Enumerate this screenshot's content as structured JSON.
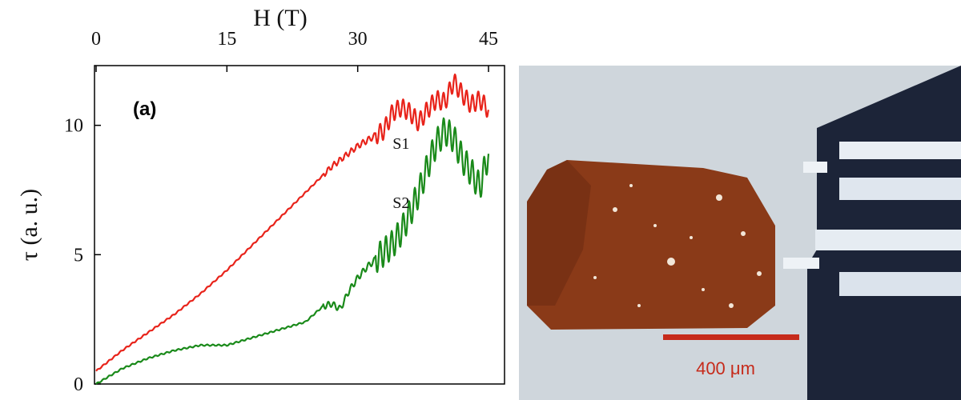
{
  "chart_data": {
    "type": "line",
    "panel_label": "(a)",
    "xlabel": "H (T)",
    "ylabel": "τ (a. u.)",
    "xlim": [
      0,
      45
    ],
    "ylim": [
      0,
      12
    ],
    "x_ticks": [
      0,
      15,
      30,
      45
    ],
    "y_ticks": [
      0,
      5,
      10
    ],
    "x_axis_position": "top",
    "grid": false,
    "series": [
      {
        "name": "S1",
        "color": "#e8231a",
        "x": [
          0,
          3,
          6,
          9,
          12,
          15,
          18,
          21,
          24,
          27,
          30,
          32,
          33,
          34,
          35,
          36,
          37,
          38,
          39,
          40,
          41,
          42,
          43,
          44,
          45
        ],
        "y": [
          0.5,
          1.3,
          2.0,
          2.7,
          3.5,
          4.4,
          5.4,
          6.4,
          7.4,
          8.4,
          9.2,
          9.6,
          9.8,
          10.5,
          10.7,
          10.5,
          10.1,
          10.6,
          11.0,
          10.9,
          11.7,
          11.2,
          10.8,
          11.0,
          10.6
        ],
        "label_x": 34,
        "label_y": 9.1
      },
      {
        "name": "S2",
        "color": "#1a8a1a",
        "x": [
          0,
          3,
          6,
          9,
          12,
          15,
          18,
          21,
          24,
          26,
          27,
          28,
          29,
          30,
          31,
          32,
          33,
          34,
          35,
          36,
          37,
          38,
          39,
          40,
          41,
          42,
          43,
          44,
          45
        ],
        "y": [
          0.0,
          0.6,
          1.0,
          1.3,
          1.5,
          1.5,
          1.8,
          2.1,
          2.4,
          3.0,
          3.1,
          2.9,
          3.6,
          4.1,
          4.5,
          4.8,
          5.1,
          5.4,
          5.9,
          6.6,
          7.4,
          8.4,
          9.3,
          9.8,
          9.5,
          8.7,
          8.2,
          7.6,
          8.9
        ],
        "label_x": 34,
        "label_y": 6.8
      }
    ]
  },
  "photo": {
    "scale_bar_label": "400 μm",
    "scale_bar_color": "#c62b1b",
    "crystal_color": "#8a3a18",
    "background_color": "#cfd6dc"
  }
}
